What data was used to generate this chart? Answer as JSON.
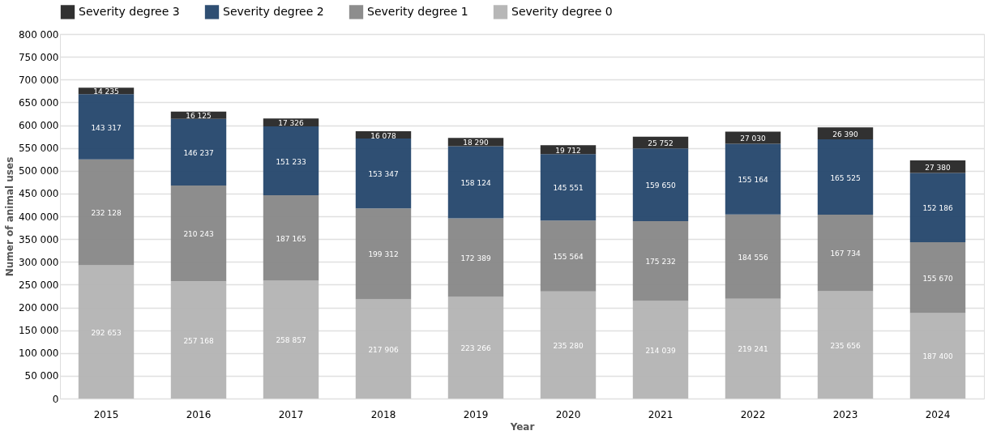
{
  "chart_data": {
    "type": "bar",
    "stacked": true,
    "xlabel": "Year",
    "ylabel": "Numer of animal uses",
    "categories": [
      "2015",
      "2016",
      "2017",
      "2018",
      "2019",
      "2020",
      "2021",
      "2022",
      "2023",
      "2024"
    ],
    "series": [
      {
        "name": "Severity degree 0",
        "color": "#b3b3b3",
        "values": [
          292653,
          257168,
          258857,
          217906,
          223266,
          235280,
          214039,
          219241,
          235656,
          187400
        ],
        "value_labels": [
          "292 653",
          "257 168",
          "258 857",
          "217 906",
          "223 266",
          "235 280",
          "214 039",
          "219 241",
          "235 656",
          "187 400"
        ]
      },
      {
        "name": "Severity degree 1",
        "color": "#878787",
        "values": [
          232128,
          210243,
          187165,
          199312,
          172389,
          155564,
          175232,
          184556,
          167734,
          155670
        ],
        "value_labels": [
          "232 128",
          "210 243",
          "187 165",
          "199 312",
          "172 389",
          "155 564",
          "175 232",
          "184 556",
          "167 734",
          "155 670"
        ]
      },
      {
        "name": "Severity degree 2",
        "color": "#24466b",
        "values": [
          143317,
          146237,
          151233,
          153347,
          158124,
          145551,
          159650,
          155164,
          165525,
          152186
        ],
        "value_labels": [
          "143 317",
          "146 237",
          "151 233",
          "153 347",
          "158 124",
          "145 551",
          "159 650",
          "155 164",
          "165 525",
          "152 186"
        ]
      },
      {
        "name": "Severity degree 3",
        "color": "#262626",
        "values": [
          14235,
          16125,
          17326,
          16078,
          18290,
          19712,
          25752,
          27030,
          26390,
          27380
        ],
        "value_labels": [
          "14 235",
          "16 125",
          "17 326",
          "16 078",
          "18 290",
          "19 712",
          "25 752",
          "27 030",
          "26 390",
          "27 380"
        ]
      }
    ],
    "ylim": [
      0,
      800000
    ],
    "yticks": [
      0,
      {
        "value": 50000,
        "label": "50 000"
      },
      {
        "value": 100000,
        "label": "100 000"
      },
      {
        "value": 150000,
        "label": "150 000"
      },
      {
        "value": 200000,
        "label": "200 000"
      },
      {
        "value": 250000,
        "label": "250 000"
      },
      {
        "value": 300000,
        "label": "300 000"
      },
      {
        "value": 350000,
        "label": "350 000"
      },
      {
        "value": 400000,
        "label": "400 000"
      },
      {
        "value": 450000,
        "label": "450 000"
      },
      {
        "value": 500000,
        "label": "500 000"
      },
      {
        "value": 550000,
        "label": "550 000"
      },
      {
        "value": 600000,
        "label": "600 000"
      },
      {
        "value": 650000,
        "label": "650 000"
      },
      {
        "value": 700000,
        "label": "700 000"
      },
      {
        "value": 750000,
        "label": "750 000"
      },
      {
        "value": 800000,
        "label": "800 000"
      }
    ],
    "grid": "y",
    "legend": "top"
  }
}
